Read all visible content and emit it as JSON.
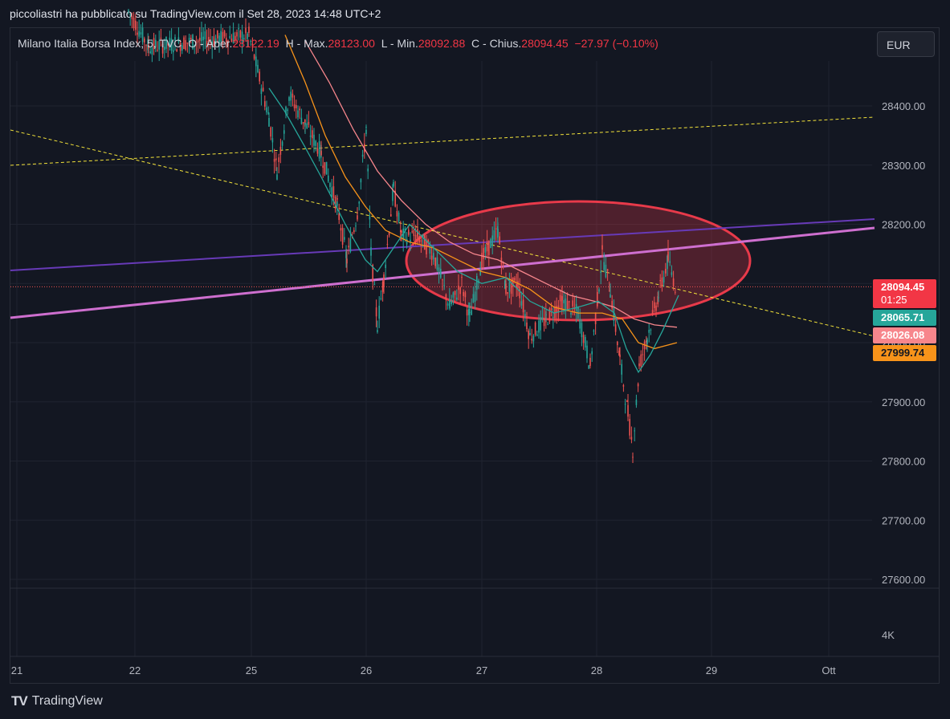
{
  "header": {
    "caption": "piccoliastri ha pubblicato su TradingView.com il Set 28, 2023 14:48 UTC+2"
  },
  "legend": {
    "symbol": "Milano Italia Borsa Index, 5, TVC",
    "open_label": "O - Aper.",
    "open_value": "28122.19",
    "high_label": "H - Max.",
    "high_value": "28123.00",
    "low_label": "L - Min.",
    "low_value": "28092.88",
    "close_label": "C - Chius.",
    "close_value": "28094.45",
    "change": "−27.97 (−0.10%)"
  },
  "currency_button": {
    "label": "EUR"
  },
  "price_badges": [
    {
      "value": "28094.45",
      "sub": "01:25",
      "color": "#f23645"
    },
    {
      "value": "28065.71",
      "color": "#26a69a"
    },
    {
      "value": "28026.08",
      "color": "#f7868c"
    },
    {
      "value": "27999.74",
      "color": "#f7931a"
    }
  ],
  "footer": {
    "brand_logo": "TV",
    "brand_name": "TradingView"
  },
  "colors": {
    "background": "#131722",
    "grid": "#1f2330",
    "candle_up": "#26a69a",
    "candle_down": "#ef5350",
    "ellipse": "#e83a4a",
    "trend_purple": "#673ab7",
    "trend_pink": "#ce6fcf",
    "dashed_yellow": "#f3e33a",
    "ma_fast": "#26a69a",
    "ma_mid": "#f7931a",
    "ma_slow": "#f7868c"
  },
  "chart_data": {
    "type": "candlestick",
    "title": "Milano Italia Borsa Index, 5, TVC",
    "xlabel": "",
    "ylabel": "",
    "x_ticks": [
      "21",
      "22",
      "25",
      "26",
      "27",
      "28",
      "29",
      "Ott"
    ],
    "y_ticks": [
      "28400.00",
      "28300.00",
      "28200.00",
      "28100.00",
      "28000.00",
      "27900.00",
      "27800.00",
      "27700.00",
      "27600.00"
    ],
    "y_tick_values": [
      28400,
      28300,
      28200,
      28100,
      28000,
      27900,
      27800,
      27700,
      27600
    ],
    "ylim": [
      27590,
      28510
    ],
    "lower_axis_label": "4K",
    "grid": true,
    "last_price": 28094.45,
    "countdown": "01:25",
    "series": [
      {
        "name": "price",
        "kind": "candles"
      },
      {
        "name": "",
        "kind": "moving-average",
        "last": 28065.71
      },
      {
        "name": "",
        "kind": "moving-average",
        "last": 27999.74
      },
      {
        "name": "",
        "kind": "moving-average",
        "last": 28026.08
      }
    ],
    "annotations": [
      "ellipse highlight around 27-28 range 28030 - 28240",
      "dashed yellow descending trend line",
      "dashed yellow ascending trend line",
      "purple ascending line",
      "pink ascending line"
    ]
  }
}
